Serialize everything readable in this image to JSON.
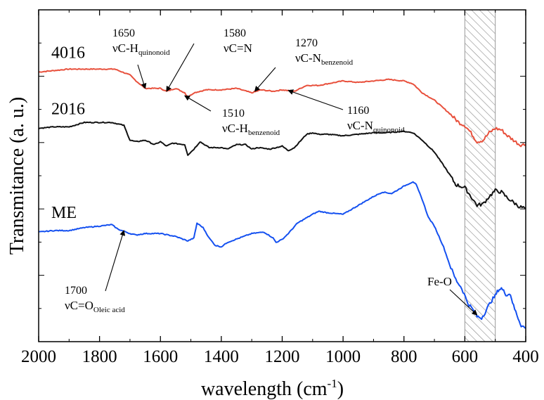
{
  "chart_data": {
    "type": "line",
    "xlabel": "wavelength (cm",
    "xlabel_sup": "-1",
    "xlabel_close": ")",
    "ylabel": "Transmitance (a. u.)",
    "xlim": [
      2000,
      400
    ],
    "x_ticks": [
      "2000",
      "1800",
      "1600",
      "1400",
      "1200",
      "1000",
      "800",
      "600",
      "400"
    ],
    "y_ticks_visible": false,
    "shaded_region": {
      "from": 600,
      "to": 500,
      "pattern": "diagonal-hatch"
    },
    "series": [
      {
        "name": "4016",
        "color": "#e8503c",
        "points": [
          [
            2000,
            0.79
          ],
          [
            1900,
            0.8
          ],
          [
            1800,
            0.8
          ],
          [
            1750,
            0.8
          ],
          [
            1700,
            0.78
          ],
          [
            1680,
            0.76
          ],
          [
            1650,
            0.735
          ],
          [
            1600,
            0.735
          ],
          [
            1580,
            0.725
          ],
          [
            1550,
            0.735
          ],
          [
            1520,
            0.72
          ],
          [
            1510,
            0.705
          ],
          [
            1490,
            0.72
          ],
          [
            1450,
            0.73
          ],
          [
            1400,
            0.73
          ],
          [
            1350,
            0.735
          ],
          [
            1300,
            0.72
          ],
          [
            1270,
            0.73
          ],
          [
            1230,
            0.725
          ],
          [
            1200,
            0.73
          ],
          [
            1160,
            0.725
          ],
          [
            1120,
            0.745
          ],
          [
            1080,
            0.745
          ],
          [
            1000,
            0.76
          ],
          [
            950,
            0.755
          ],
          [
            900,
            0.76
          ],
          [
            850,
            0.765
          ],
          [
            800,
            0.76
          ],
          [
            770,
            0.75
          ],
          [
            740,
            0.72
          ],
          [
            700,
            0.695
          ],
          [
            650,
            0.65
          ],
          [
            620,
            0.62
          ],
          [
            600,
            0.61
          ],
          [
            580,
            0.585
          ],
          [
            560,
            0.555
          ],
          [
            540,
            0.56
          ],
          [
            520,
            0.585
          ],
          [
            500,
            0.6
          ],
          [
            480,
            0.595
          ],
          [
            460,
            0.575
          ],
          [
            440,
            0.56
          ],
          [
            420,
            0.545
          ],
          [
            400,
            0.545
          ]
        ]
      },
      {
        "name": "2016",
        "color": "#111111",
        "points": [
          [
            2000,
            0.6
          ],
          [
            1950,
            0.605
          ],
          [
            1900,
            0.605
          ],
          [
            1850,
            0.62
          ],
          [
            1800,
            0.62
          ],
          [
            1760,
            0.62
          ],
          [
            1720,
            0.61
          ],
          [
            1700,
            0.56
          ],
          [
            1680,
            0.555
          ],
          [
            1650,
            0.56
          ],
          [
            1620,
            0.545
          ],
          [
            1600,
            0.555
          ],
          [
            1580,
            0.54
          ],
          [
            1560,
            0.55
          ],
          [
            1520,
            0.545
          ],
          [
            1510,
            0.51
          ],
          [
            1490,
            0.53
          ],
          [
            1470,
            0.555
          ],
          [
            1440,
            0.535
          ],
          [
            1400,
            0.535
          ],
          [
            1380,
            0.53
          ],
          [
            1350,
            0.545
          ],
          [
            1320,
            0.545
          ],
          [
            1300,
            0.53
          ],
          [
            1280,
            0.535
          ],
          [
            1240,
            0.53
          ],
          [
            1200,
            0.54
          ],
          [
            1180,
            0.525
          ],
          [
            1160,
            0.535
          ],
          [
            1120,
            0.58
          ],
          [
            1100,
            0.585
          ],
          [
            1080,
            0.58
          ],
          [
            1050,
            0.58
          ],
          [
            1000,
            0.575
          ],
          [
            950,
            0.58
          ],
          [
            900,
            0.585
          ],
          [
            860,
            0.585
          ],
          [
            800,
            0.59
          ],
          [
            770,
            0.585
          ],
          [
            740,
            0.56
          ],
          [
            700,
            0.52
          ],
          [
            660,
            0.46
          ],
          [
            630,
            0.41
          ],
          [
            600,
            0.4
          ],
          [
            580,
            0.37
          ],
          [
            560,
            0.34
          ],
          [
            540,
            0.345
          ],
          [
            520,
            0.37
          ],
          [
            500,
            0.39
          ],
          [
            480,
            0.385
          ],
          [
            460,
            0.365
          ],
          [
            440,
            0.35
          ],
          [
            420,
            0.335
          ],
          [
            400,
            0.33
          ]
        ]
      },
      {
        "name": "ME",
        "color": "#1450f0",
        "points": [
          [
            2000,
            0.25
          ],
          [
            1950,
            0.255
          ],
          [
            1900,
            0.255
          ],
          [
            1850,
            0.265
          ],
          [
            1800,
            0.27
          ],
          [
            1760,
            0.275
          ],
          [
            1740,
            0.26
          ],
          [
            1700,
            0.245
          ],
          [
            1680,
            0.24
          ],
          [
            1650,
            0.245
          ],
          [
            1600,
            0.245
          ],
          [
            1550,
            0.235
          ],
          [
            1510,
            0.22
          ],
          [
            1490,
            0.23
          ],
          [
            1480,
            0.28
          ],
          [
            1460,
            0.265
          ],
          [
            1440,
            0.23
          ],
          [
            1420,
            0.205
          ],
          [
            1400,
            0.2
          ],
          [
            1380,
            0.215
          ],
          [
            1340,
            0.23
          ],
          [
            1300,
            0.245
          ],
          [
            1260,
            0.25
          ],
          [
            1230,
            0.23
          ],
          [
            1220,
            0.215
          ],
          [
            1200,
            0.225
          ],
          [
            1180,
            0.245
          ],
          [
            1150,
            0.28
          ],
          [
            1100,
            0.31
          ],
          [
            1080,
            0.32
          ],
          [
            1050,
            0.315
          ],
          [
            1000,
            0.31
          ],
          [
            950,
            0.34
          ],
          [
            900,
            0.37
          ],
          [
            870,
            0.385
          ],
          [
            840,
            0.38
          ],
          [
            800,
            0.405
          ],
          [
            770,
            0.42
          ],
          [
            760,
            0.41
          ],
          [
            740,
            0.36
          ],
          [
            720,
            0.3
          ],
          [
            700,
            0.27
          ],
          [
            670,
            0.2
          ],
          [
            650,
            0.14
          ],
          [
            630,
            0.09
          ],
          [
            610,
            0.06
          ],
          [
            590,
            0.01
          ],
          [
            575,
            -0.01
          ],
          [
            560,
            -0.035
          ],
          [
            545,
            -0.04
          ],
          [
            530,
            -0.015
          ],
          [
            515,
            0.015
          ],
          [
            500,
            0.035
          ],
          [
            490,
            0.055
          ],
          [
            480,
            0.06
          ],
          [
            465,
            0.04
          ],
          [
            450,
            0.04
          ],
          [
            440,
            0.0
          ],
          [
            425,
            -0.04
          ],
          [
            415,
            -0.065
          ],
          [
            400,
            -0.075
          ]
        ]
      }
    ],
    "annotations": [
      {
        "num": "1650",
        "main": "νC-H",
        "sub": "quinonoid",
        "target": [
          1650,
          0.735
        ]
      },
      {
        "num": "1580",
        "main": "νC=N",
        "sub": "",
        "target": [
          1580,
          0.725
        ]
      },
      {
        "num": "1270",
        "main": "νC-N",
        "sub": "benzenoid",
        "target": [
          1290,
          0.725
        ]
      },
      {
        "num": "1510",
        "main": "νC-H",
        "sub": "benzenoid",
        "target": [
          1520,
          0.71
        ]
      },
      {
        "num": "1160",
        "main": "νC-N",
        "sub": "quinonoid",
        "target": [
          1180,
          0.728
        ]
      },
      {
        "num": "1700",
        "main": "νC=O",
        "sub": "Oleic acid",
        "target": [
          1720,
          0.255
        ]
      },
      {
        "num": "",
        "main": "Fe-O",
        "sub": "",
        "target": [
          560,
          -0.03
        ]
      }
    ]
  }
}
